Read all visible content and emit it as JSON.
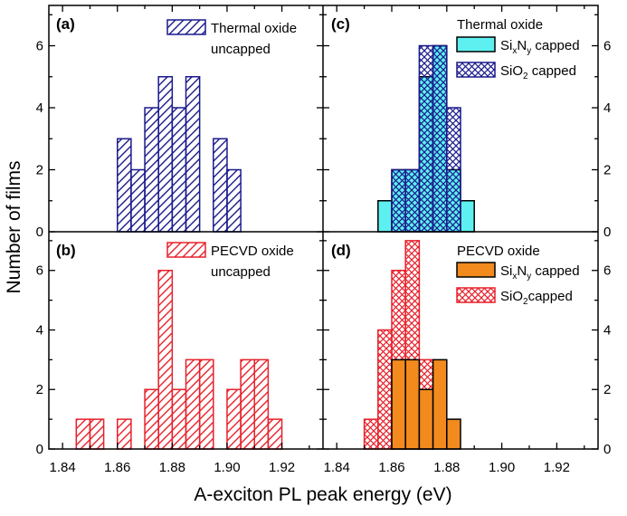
{
  "chart_data": {
    "type": "histogram",
    "xlabel": "A-exciton PL peak energy (eV)",
    "ylabel": "Number of films",
    "xlim": [
      1.835,
      1.935
    ],
    "ylim": [
      0,
      7.3
    ],
    "bin_width": 0.005,
    "x_ticks": [
      "1.84",
      "1.86",
      "1.88",
      "1.90",
      "1.92"
    ],
    "y_ticks": [
      "0",
      "2",
      "4",
      "6"
    ],
    "colors": {
      "blue": "#1a1a8c",
      "red": "#e8202a",
      "cyan": "#5ef0f0",
      "orange": "#f28a1e",
      "black": "#000000"
    },
    "panels": [
      {
        "letter": "(a)",
        "legend_title": "",
        "series": [
          {
            "name": "Thermal oxide",
            "name_line2": "uncapped",
            "style": "hatch",
            "color": "#1a1a8c",
            "bins": [
              [
                1.86,
                3
              ],
              [
                1.865,
                2
              ],
              [
                1.87,
                4
              ],
              [
                1.875,
                5
              ],
              [
                1.88,
                4
              ],
              [
                1.885,
                5
              ],
              [
                1.895,
                3
              ],
              [
                1.9,
                2
              ]
            ]
          }
        ]
      },
      {
        "letter": "(b)",
        "legend_title": "",
        "series": [
          {
            "name": "PECVD oxide",
            "name_line2": "uncapped",
            "style": "hatch",
            "color": "#e8202a",
            "bins": [
              [
                1.845,
                1
              ],
              [
                1.85,
                1
              ],
              [
                1.86,
                1
              ],
              [
                1.87,
                2
              ],
              [
                1.875,
                6
              ],
              [
                1.88,
                2
              ],
              [
                1.885,
                3
              ],
              [
                1.89,
                3
              ],
              [
                1.9,
                2
              ],
              [
                1.905,
                3
              ],
              [
                1.91,
                3
              ],
              [
                1.915,
                1
              ]
            ]
          }
        ]
      },
      {
        "letter": "(c)",
        "legend_title": "Thermal oxide",
        "series": [
          {
            "name": "SixNy capped",
            "label_main": "Si",
            "sub1": "x",
            "mid": "N",
            "sub2": "y",
            "suffix": " capped",
            "style": "solid",
            "color": "#5ef0f0",
            "bins": [
              [
                1.855,
                1
              ],
              [
                1.86,
                2
              ],
              [
                1.865,
                2
              ],
              [
                1.87,
                5
              ],
              [
                1.875,
                6
              ],
              [
                1.88,
                2
              ],
              [
                1.885,
                1
              ]
            ]
          },
          {
            "name": "SiO2 capped",
            "label_main": "SiO",
            "sub1": "2",
            "mid": "",
            "sub2": "",
            "suffix": " capped",
            "style": "cross",
            "color": "#1a1a8c",
            "bins": [
              [
                1.86,
                2
              ],
              [
                1.865,
                2
              ],
              [
                1.87,
                6
              ],
              [
                1.875,
                6
              ],
              [
                1.88,
                4
              ]
            ]
          }
        ]
      },
      {
        "letter": "(d)",
        "legend_title": "PECVD oxide",
        "series": [
          {
            "name": "SiO2capped",
            "label_main": "SiO",
            "sub1": "2",
            "mid": "",
            "sub2": "",
            "suffix": "capped",
            "style": "cross",
            "color": "#e8202a",
            "bins": [
              [
                1.85,
                1
              ],
              [
                1.855,
                4
              ],
              [
                1.86,
                6
              ],
              [
                1.865,
                7
              ],
              [
                1.87,
                3
              ]
            ]
          },
          {
            "name": "SixNy capped",
            "label_main": "Si",
            "sub1": "x",
            "mid": "N",
            "sub2": "y",
            "suffix": " capped",
            "style": "solid",
            "color": "#f28a1e",
            "bins": [
              [
                1.86,
                3
              ],
              [
                1.865,
                3
              ],
              [
                1.87,
                2
              ],
              [
                1.875,
                3
              ],
              [
                1.88,
                1
              ]
            ]
          }
        ]
      }
    ]
  }
}
